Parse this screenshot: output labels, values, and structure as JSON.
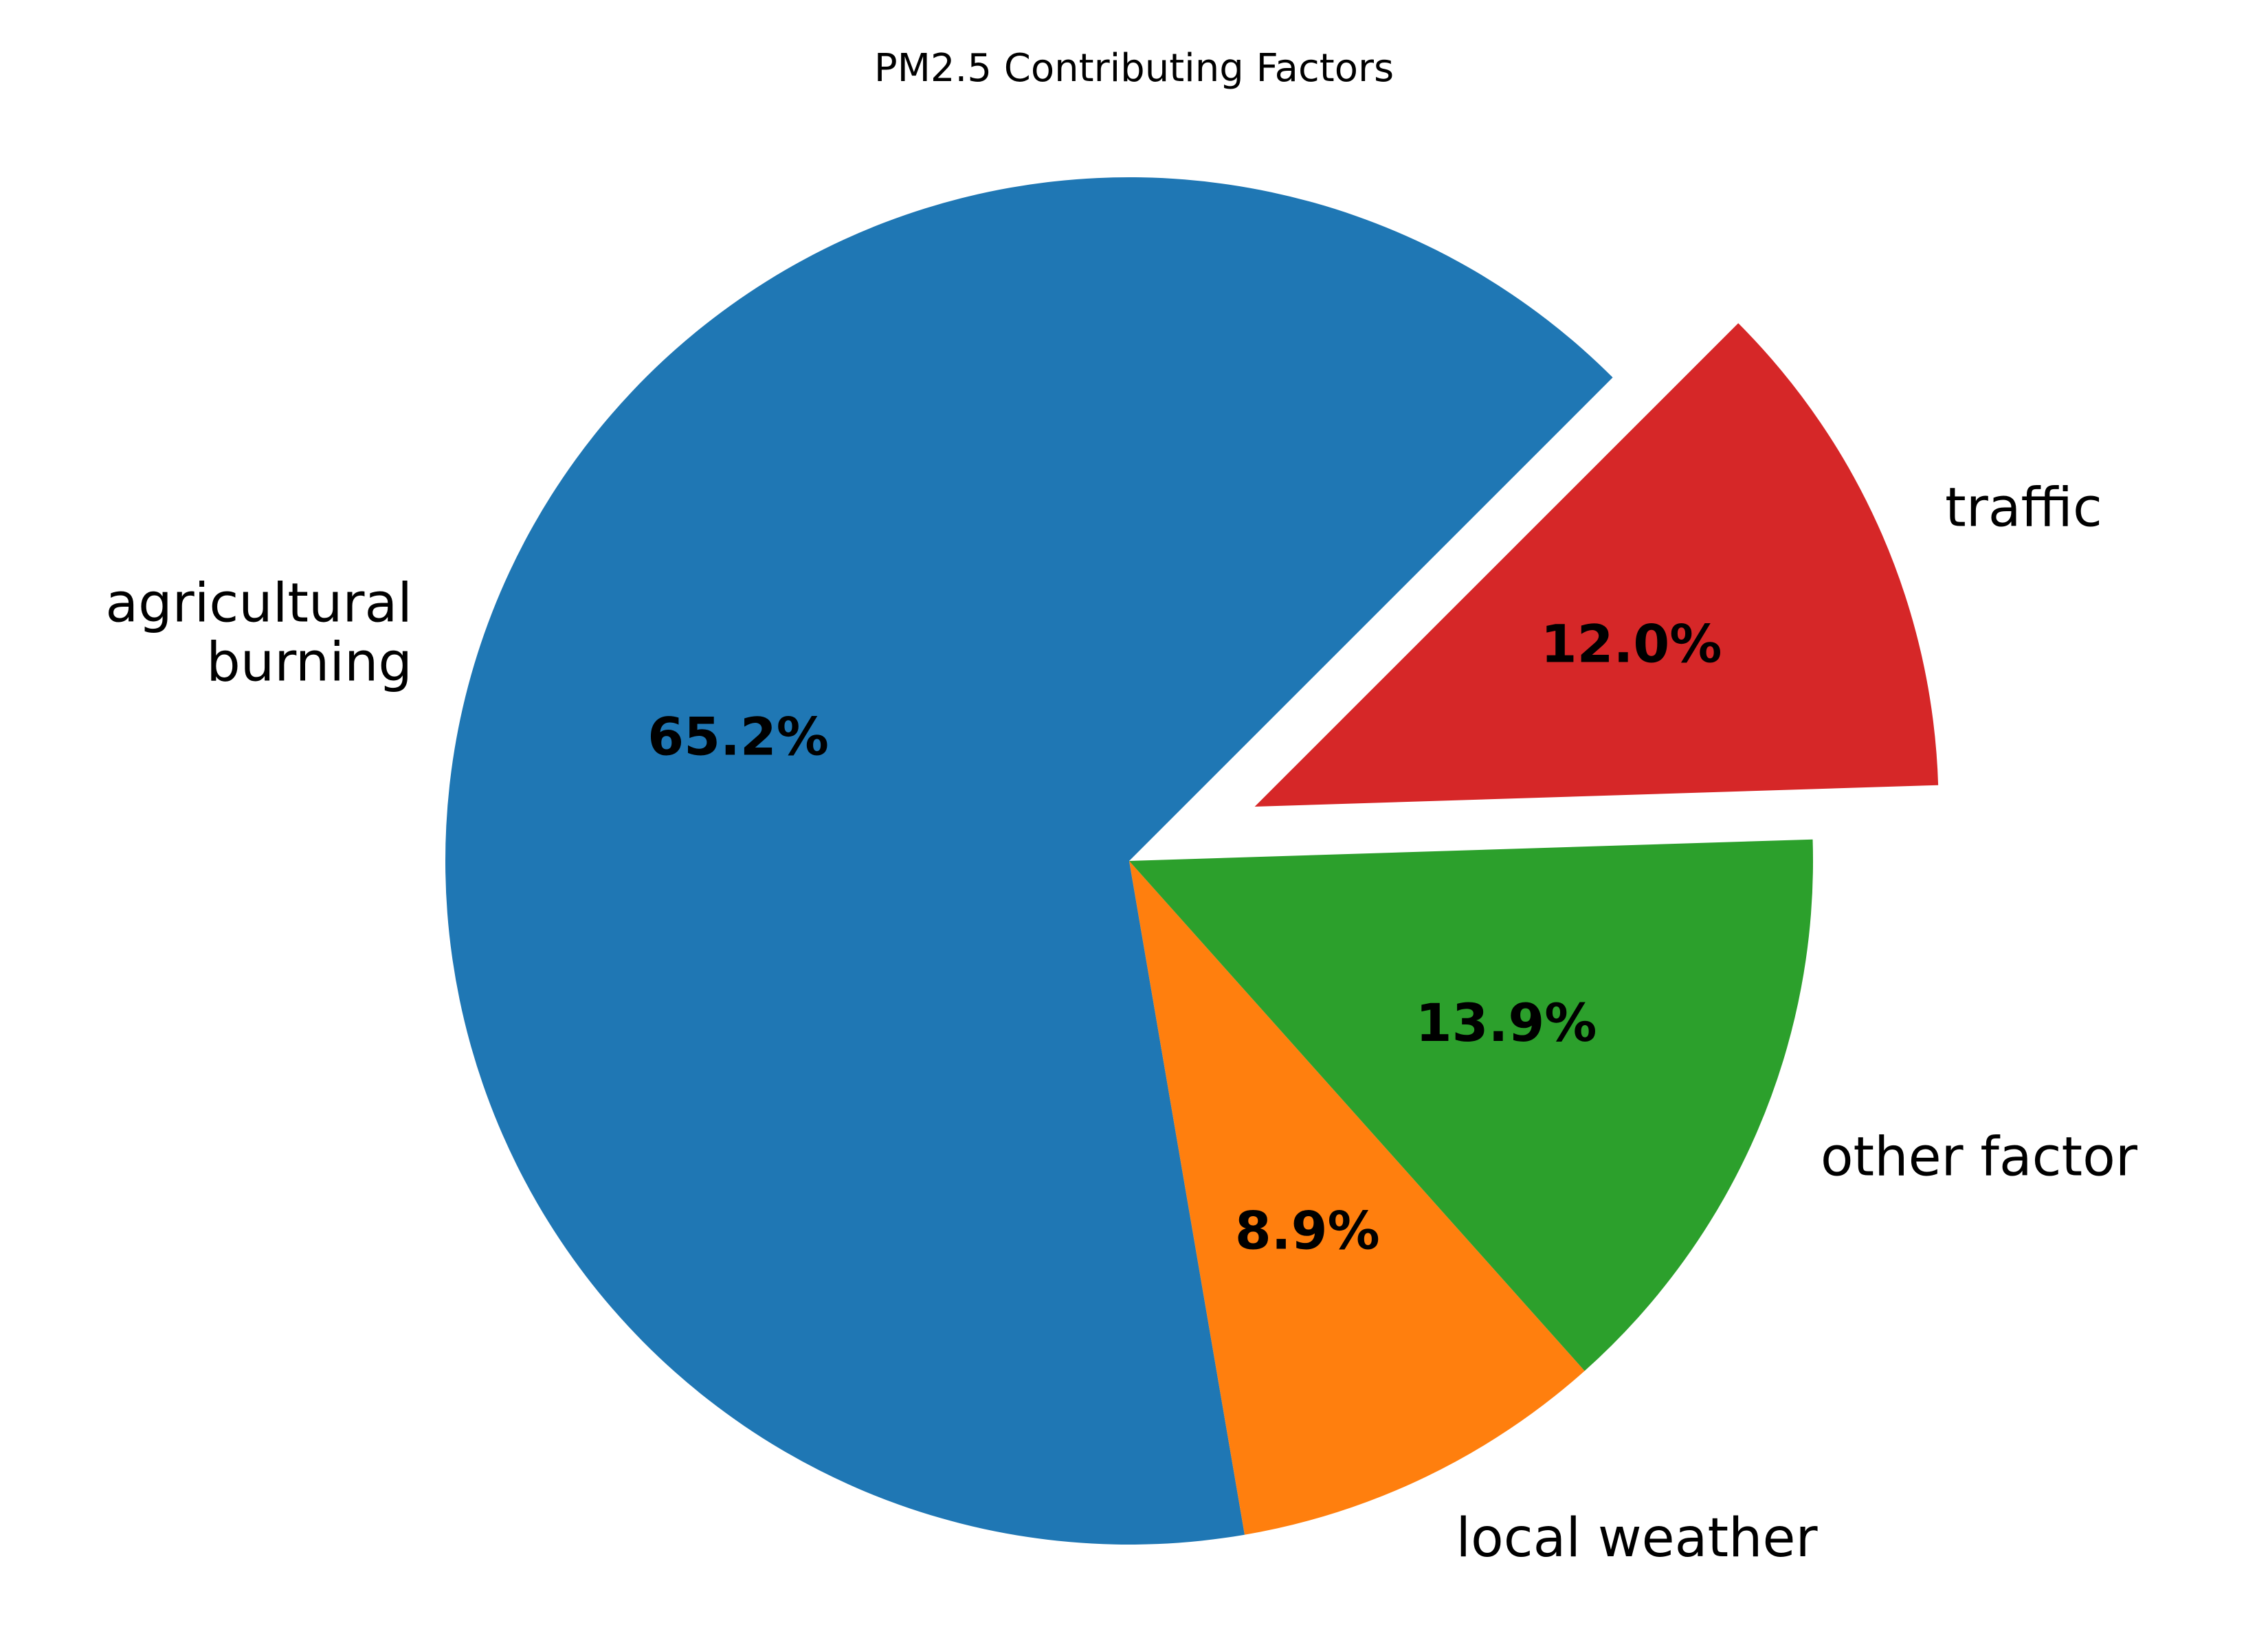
{
  "chart_data": {
    "type": "pie",
    "title": "PM2.5 Contributing Factors",
    "start_angle_deg": 45,
    "direction": "counterclockwise",
    "slices": [
      {
        "label": [
          "agricultural",
          "burning"
        ],
        "value": 65.2,
        "pct_label": "65.2%",
        "color": "#1f77b4",
        "exploded": false
      },
      {
        "label": [
          "local weather"
        ],
        "value": 8.9,
        "pct_label": "8.9%",
        "color": "#ff7f0e",
        "exploded": false
      },
      {
        "label": [
          "other factor"
        ],
        "value": 13.9,
        "pct_label": "13.9%",
        "color": "#2ca02c",
        "exploded": false
      },
      {
        "label": [
          "traffic"
        ],
        "value": 12.0,
        "pct_label": "12.0%",
        "color": "#d62728",
        "exploded": true
      }
    ]
  }
}
